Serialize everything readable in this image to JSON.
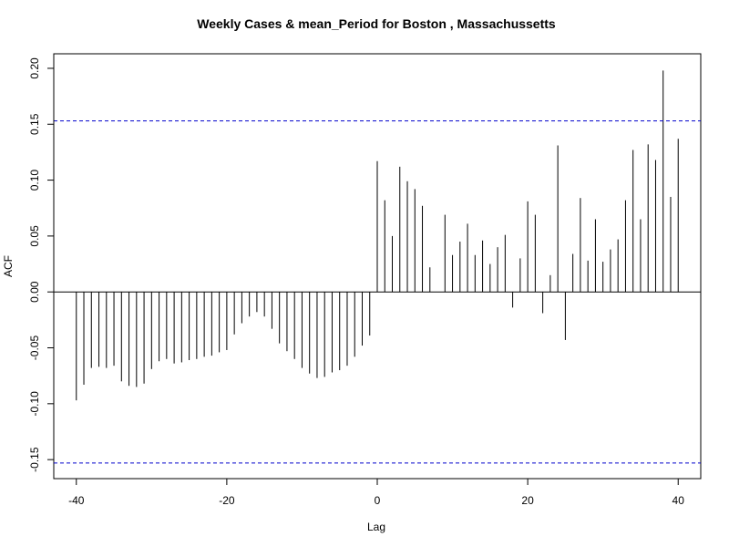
{
  "chart_data": {
    "type": "bar",
    "title": "Weekly Cases & mean_Period for Boston , Massachussetts",
    "xlabel": "Lag",
    "ylabel": "ACF",
    "xlim": [
      -43,
      43
    ],
    "ylim": [
      -0.167,
      0.213
    ],
    "xticks": [
      -40,
      -20,
      0,
      20,
      40
    ],
    "yticks": [
      -0.15,
      -0.1,
      -0.05,
      0.0,
      0.05,
      0.1,
      0.15,
      0.2
    ],
    "ytick_labels": [
      "-0.15",
      "-0.10",
      "-0.05",
      "0.00",
      "0.05",
      "0.10",
      "0.15",
      "0.20"
    ],
    "confidence_band": [
      -0.153,
      0.153
    ],
    "confidence_color": "#0000cc",
    "lags": [
      -40,
      -39,
      -38,
      -37,
      -36,
      -35,
      -34,
      -33,
      -32,
      -31,
      -30,
      -29,
      -28,
      -27,
      -26,
      -25,
      -24,
      -23,
      -22,
      -21,
      -20,
      -19,
      -18,
      -17,
      -16,
      -15,
      -14,
      -13,
      -12,
      -11,
      -10,
      -9,
      -8,
      -7,
      -6,
      -5,
      -4,
      -3,
      -2,
      -1,
      0,
      1,
      2,
      3,
      4,
      5,
      6,
      7,
      8,
      9,
      10,
      11,
      12,
      13,
      14,
      15,
      16,
      17,
      18,
      19,
      20,
      21,
      22,
      23,
      24,
      25,
      26,
      27,
      28,
      29,
      30,
      31,
      32,
      33,
      34,
      35,
      36,
      37,
      38,
      39,
      40
    ],
    "values": [
      -0.097,
      -0.083,
      -0.068,
      -0.067,
      -0.068,
      -0.066,
      -0.08,
      -0.084,
      -0.085,
      -0.082,
      -0.069,
      -0.062,
      -0.06,
      -0.064,
      -0.063,
      -0.061,
      -0.06,
      -0.058,
      -0.057,
      -0.054,
      -0.052,
      -0.038,
      -0.028,
      -0.022,
      -0.018,
      -0.022,
      -0.033,
      -0.046,
      -0.053,
      -0.06,
      -0.068,
      -0.073,
      -0.077,
      -0.076,
      -0.072,
      -0.07,
      -0.066,
      -0.058,
      -0.048,
      -0.039,
      0.117,
      0.082,
      0.05,
      0.112,
      0.099,
      0.092,
      0.077,
      0.022,
      0.0,
      0.069,
      0.033,
      0.045,
      0.061,
      0.033,
      0.046,
      0.025,
      0.04,
      0.051,
      -0.014,
      0.03,
      0.081,
      0.069,
      -0.019,
      0.015,
      0.131,
      -0.043,
      0.034,
      0.084,
      0.028,
      0.065,
      0.027,
      0.038,
      0.047,
      0.082,
      0.127,
      0.065,
      0.132,
      0.118,
      0.198,
      0.085,
      0.137
    ]
  }
}
